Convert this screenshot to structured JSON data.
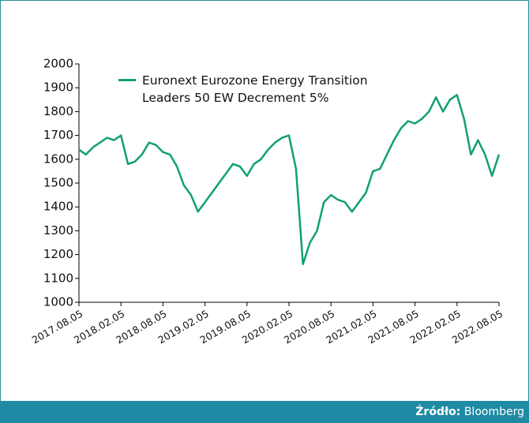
{
  "chart_data": {
    "type": "line",
    "x": [
      "2017.08.05",
      "2017.09.05",
      "2017.10.05",
      "2017.11.05",
      "2017.12.05",
      "2018.01.05",
      "2018.02.05",
      "2018.03.05",
      "2018.04.05",
      "2018.05.05",
      "2018.06.05",
      "2018.07.05",
      "2018.08.05",
      "2018.09.05",
      "2018.10.05",
      "2018.11.05",
      "2018.12.05",
      "2019.01.05",
      "2019.02.05",
      "2019.03.05",
      "2019.04.05",
      "2019.05.05",
      "2019.06.05",
      "2019.07.05",
      "2019.08.05",
      "2019.09.05",
      "2019.10.05",
      "2019.11.05",
      "2019.12.05",
      "2020.01.05",
      "2020.02.05",
      "2020.03.05",
      "2020.04.05",
      "2020.05.05",
      "2020.06.05",
      "2020.07.05",
      "2020.08.05",
      "2020.09.05",
      "2020.10.05",
      "2020.11.05",
      "2020.12.05",
      "2021.01.05",
      "2021.02.05",
      "2021.03.05",
      "2021.04.05",
      "2021.05.05",
      "2021.06.05",
      "2021.07.05",
      "2021.08.05",
      "2021.09.05",
      "2021.10.05",
      "2021.11.05",
      "2021.12.05",
      "2022.01.05",
      "2022.02.05",
      "2022.03.05",
      "2022.04.05",
      "2022.05.05",
      "2022.06.05",
      "2022.07.05",
      "2022.08.05"
    ],
    "series": [
      {
        "name": "Euronext Eurozone Energy Transition Leaders 50 EW Decrement 5%",
        "color": "#11a071",
        "values": [
          1640,
          1620,
          1650,
          1670,
          1690,
          1680,
          1700,
          1580,
          1590,
          1620,
          1670,
          1660,
          1630,
          1620,
          1570,
          1490,
          1450,
          1380,
          1420,
          1460,
          1500,
          1540,
          1580,
          1570,
          1530,
          1580,
          1600,
          1640,
          1670,
          1690,
          1700,
          1560,
          1160,
          1250,
          1300,
          1420,
          1450,
          1430,
          1420,
          1380,
          1420,
          1460,
          1550,
          1560,
          1620,
          1680,
          1730,
          1760,
          1750,
          1770,
          1800,
          1860,
          1800,
          1850,
          1870,
          1770,
          1620,
          1680,
          1620,
          1530,
          1620
        ]
      }
    ],
    "xlim": [
      "2017.08.05",
      "2022.08.05"
    ],
    "xticks": [
      "2017.08.05",
      "2018.02.05",
      "2018.08.05",
      "2019.02.05",
      "2019.08.05",
      "2020.02.05",
      "2020.08.05",
      "2021.02.05",
      "2021.08.05",
      "2022.02.05",
      "2022.08.05"
    ],
    "ylim": [
      1000,
      2000
    ],
    "yticks": [
      1000,
      1100,
      1200,
      1300,
      1400,
      1500,
      1600,
      1700,
      1800,
      1900,
      2000
    ],
    "grid": false,
    "legend": "top-left",
    "source_label": "Źródło:",
    "source_value": "Bloomberg"
  }
}
